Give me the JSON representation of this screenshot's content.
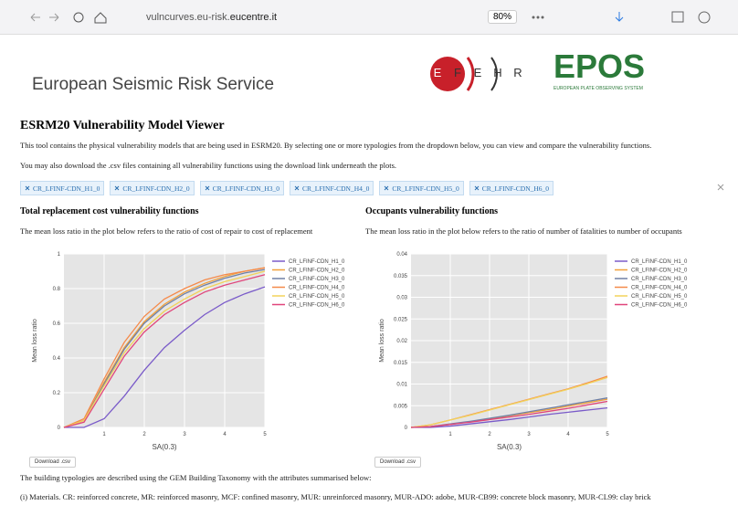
{
  "browser": {
    "url_prefix": "vulncurves.eu-risk.",
    "url_domain": "eucentre.it",
    "zoom": "80%"
  },
  "header": {
    "title": "European Seismic Risk Service",
    "efehr_letters": [
      "E",
      "F",
      "E",
      "H",
      "R"
    ],
    "epos": "EPOS",
    "epos_sub": "EUROPEAN PLATE OBSERVING SYSTEM"
  },
  "page": {
    "heading": "ESRM20 Vulnerability Model Viewer",
    "intro": [
      "This tool contains the physical vulnerability models that are being used in ESRM20. By selecting one or more typologies from the dropdown below, you can view and compare the vulnerability functions.",
      "You may also download the .csv files containing all vulnerability functions using the download link underneath the plots."
    ],
    "tags": [
      "CR_LFINF-CDN_H1_0",
      "CR_LFINF-CDN_H2_0",
      "CR_LFINF-CDN_H3_0",
      "CR_LFINF-CDN_H4_0",
      "CR_LFINF-CDN_H5_0",
      "CR_LFINF-CDN_H6_0"
    ],
    "sections": [
      {
        "title": "Total replacement cost vulnerability functions",
        "description": "The mean loss ratio in the plot below refers to the ratio of cost of repair to cost of replacement",
        "download": "Download .csv"
      },
      {
        "title": "Occupants vulnerability functions",
        "description": "The mean loss ratio in the plot below refers to the ratio of number of fatalities to number of occupants",
        "download": "Download .csv"
      }
    ],
    "footer": [
      "The building typologies are described using the GEM Building Taxonomy with the attributes summarised below:",
      "(i) Materials. CR: reinforced concrete, MR: reinforced masonry, MCF: confined masonry, MUR: unreinforced masonry, MUR-ADO: adobe, MUR-CB99: concrete block masonry, MUR-CL99: clay brick"
    ]
  },
  "chart_data": [
    {
      "type": "line",
      "x_label": "SA(0.3)",
      "y_label": "Mean loss ratio",
      "x": [
        0,
        0.5,
        1,
        1.5,
        2,
        2.5,
        3,
        3.5,
        4,
        4.5,
        5
      ],
      "xlim": [
        0,
        5
      ],
      "xticks": [
        1,
        2,
        3,
        4,
        5
      ],
      "ylim": [
        0,
        1
      ],
      "yticks": [
        0,
        0.2,
        0.4,
        0.6,
        0.8,
        1
      ],
      "grid": true,
      "series": [
        {
          "name": "CR_LFINF-CDN_H1_0",
          "color": "#7a5bc9",
          "values": [
            0,
            0,
            0.05,
            0.18,
            0.33,
            0.46,
            0.56,
            0.65,
            0.72,
            0.77,
            0.81
          ]
        },
        {
          "name": "CR_LFINF-CDN_H2_0",
          "color": "#f0a03a",
          "values": [
            0,
            0.04,
            0.26,
            0.46,
            0.61,
            0.71,
            0.78,
            0.83,
            0.87,
            0.9,
            0.92
          ]
        },
        {
          "name": "CR_LFINF-CDN_H3_0",
          "color": "#6f80a6",
          "values": [
            0,
            0.04,
            0.25,
            0.45,
            0.6,
            0.7,
            0.77,
            0.82,
            0.86,
            0.89,
            0.91
          ]
        },
        {
          "name": "CR_LFINF-CDN_H4_0",
          "color": "#f58a4a",
          "values": [
            0,
            0.05,
            0.28,
            0.49,
            0.64,
            0.74,
            0.8,
            0.85,
            0.88,
            0.9,
            0.92
          ]
        },
        {
          "name": "CR_LFINF-CDN_H5_0",
          "color": "#f2d25a",
          "values": [
            0,
            0.04,
            0.24,
            0.43,
            0.57,
            0.67,
            0.74,
            0.8,
            0.84,
            0.87,
            0.9
          ]
        },
        {
          "name": "CR_LFINF-CDN_H6_0",
          "color": "#e0457b",
          "values": [
            0,
            0.03,
            0.22,
            0.41,
            0.55,
            0.65,
            0.72,
            0.78,
            0.82,
            0.85,
            0.88
          ]
        }
      ]
    },
    {
      "type": "line",
      "x_label": "SA(0.3)",
      "y_label": "Mean loss ratio",
      "x": [
        0,
        0.5,
        1,
        1.5,
        2,
        2.5,
        3,
        3.5,
        4,
        4.5,
        5
      ],
      "xlim": [
        0,
        5
      ],
      "xticks": [
        1,
        2,
        3,
        4,
        5
      ],
      "ylim": [
        0,
        0.04
      ],
      "yticks": [
        0,
        0.005,
        0.01,
        0.015,
        0.02,
        0.025,
        0.03,
        0.035,
        0.04
      ],
      "grid": true,
      "series": [
        {
          "name": "CR_LFINF-CDN_H1_0",
          "color": "#7a5bc9",
          "values": [
            0,
            0,
            0.0003,
            0.0008,
            0.0013,
            0.0018,
            0.0024,
            0.003,
            0.0035,
            0.004,
            0.0045
          ]
        },
        {
          "name": "CR_LFINF-CDN_H2_0",
          "color": "#f0a03a",
          "values": [
            0,
            0.0002,
            0.0007,
            0.0013,
            0.002,
            0.0027,
            0.0034,
            0.0041,
            0.0049,
            0.0057,
            0.0065
          ]
        },
        {
          "name": "CR_LFINF-CDN_H3_0",
          "color": "#6f80a6",
          "values": [
            0,
            0.0002,
            0.0008,
            0.0014,
            0.0021,
            0.0028,
            0.0036,
            0.0044,
            0.0052,
            0.006,
            0.0068
          ]
        },
        {
          "name": "CR_LFINF-CDN_H4_0",
          "color": "#f58a4a",
          "values": [
            0,
            0.0006,
            0.0017,
            0.0029,
            0.0041,
            0.0053,
            0.0065,
            0.0077,
            0.0089,
            0.0103,
            0.0118
          ]
        },
        {
          "name": "CR_LFINF-CDN_H5_0",
          "color": "#f2d25a",
          "values": [
            0,
            0.0006,
            0.0017,
            0.0028,
            0.004,
            0.0052,
            0.0064,
            0.0076,
            0.0088,
            0.0101,
            0.0115
          ]
        },
        {
          "name": "CR_LFINF-CDN_H6_0",
          "color": "#e0457b",
          "values": [
            0,
            0.0002,
            0.0007,
            0.0012,
            0.0018,
            0.0024,
            0.003,
            0.0037,
            0.0044,
            0.0052,
            0.006
          ]
        }
      ]
    }
  ]
}
